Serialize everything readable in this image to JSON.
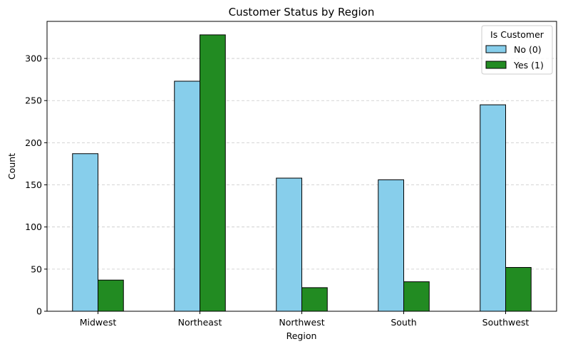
{
  "chart_data": {
    "type": "bar",
    "title": "Customer Status by Region",
    "xlabel": "Region",
    "ylabel": "Count",
    "categories": [
      "Midwest",
      "Northeast",
      "Northwest",
      "South",
      "Southwest"
    ],
    "series": [
      {
        "name": "No (0)",
        "color": "#87ceeb",
        "values": [
          187,
          273,
          158,
          156,
          245
        ]
      },
      {
        "name": "Yes (1)",
        "color": "#228b22",
        "values": [
          37,
          328,
          28,
          35,
          52
        ]
      }
    ],
    "ylim": [
      0,
      344
    ],
    "yticks": [
      0,
      50,
      100,
      150,
      200,
      250,
      300
    ],
    "grid": "y-dashed",
    "legend": {
      "title": "Is Customer",
      "placement": "top-right"
    },
    "edge_color": "#000000"
  }
}
